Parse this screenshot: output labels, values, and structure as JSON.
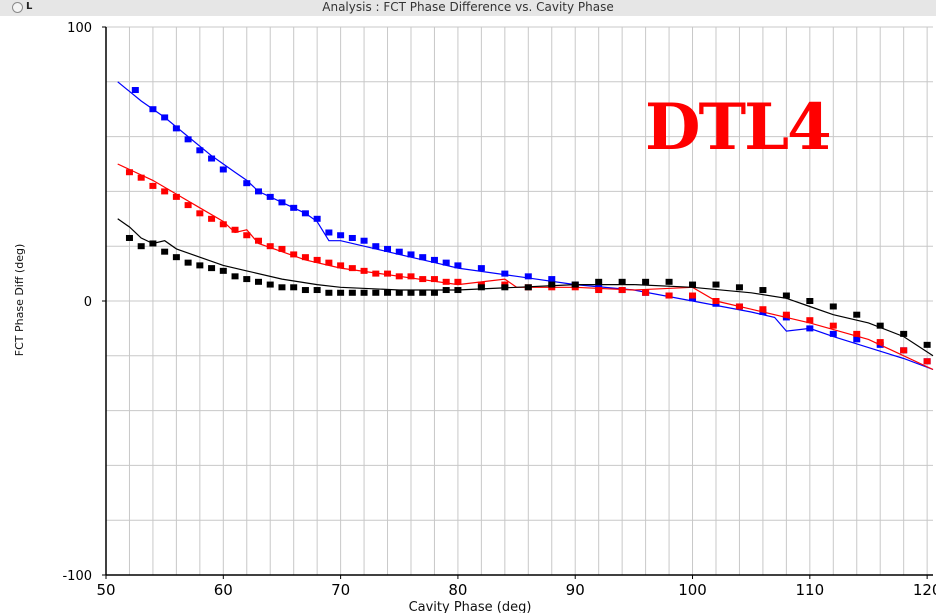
{
  "window": {
    "title": "Analysis : FCT Phase Difference vs. Cavity Phase",
    "corner_label": "L"
  },
  "annotation": {
    "text": "DTL4",
    "color": "#ff0000"
  },
  "chart_data": {
    "type": "scatter",
    "title": "Analysis : FCT Phase Difference vs. Cavity Phase",
    "xlabel": "Cavity Phase (deg)",
    "ylabel": "FCT Phase Diff (deg)",
    "xlim": [
      50,
      120.5
    ],
    "ylim": [
      -100,
      100
    ],
    "xticks": [
      50,
      60,
      70,
      80,
      90,
      100,
      110,
      120
    ],
    "yticks": [
      -100,
      0,
      100
    ],
    "ygrid": [
      -100,
      -80,
      -60,
      -40,
      -20,
      0,
      20,
      40,
      60,
      80,
      100
    ],
    "xgrid_step": 2,
    "grid": true,
    "series": [
      {
        "color": "#0000ff",
        "points": {
          "x": [
            52.5,
            54,
            55,
            56,
            57,
            58,
            59,
            60,
            62,
            63,
            64,
            65,
            66,
            67,
            68,
            69,
            70,
            71,
            72,
            73,
            74,
            75,
            76,
            77,
            78,
            79,
            80,
            82,
            84,
            86,
            88,
            90,
            92,
            94,
            96,
            98,
            100,
            102,
            104,
            106,
            108,
            110,
            112,
            114,
            116,
            118,
            120
          ],
          "y": [
            77,
            70,
            67,
            63,
            59,
            55,
            52,
            48,
            43,
            40,
            38,
            36,
            34,
            32,
            30,
            25,
            24,
            23,
            22,
            20,
            19,
            18,
            17,
            16,
            15,
            14,
            13,
            12,
            10,
            9,
            8,
            6,
            5,
            4,
            3,
            2,
            1,
            -1,
            -2,
            -4,
            -6,
            -10,
            -12,
            -14,
            -16,
            -18,
            -22
          ]
        },
        "line": {
          "x": [
            51,
            53,
            55,
            57,
            59,
            61,
            62,
            63,
            65,
            67,
            68,
            69,
            70,
            72,
            74,
            76,
            78,
            80,
            85,
            90,
            95,
            100,
            105,
            107,
            108,
            110,
            112,
            115,
            118,
            120.5
          ],
          "y": [
            80,
            73,
            67,
            60,
            53,
            47,
            44,
            40,
            36,
            32,
            29,
            22,
            22,
            20,
            18,
            16,
            14,
            12,
            9,
            6,
            4,
            0,
            -4,
            -6,
            -11,
            -10,
            -13,
            -17,
            -21,
            -25
          ]
        }
      },
      {
        "color": "#ff0000",
        "points": {
          "x": [
            52,
            53,
            54,
            55,
            56,
            57,
            58,
            59,
            60,
            61,
            62,
            63,
            64,
            65,
            66,
            67,
            68,
            69,
            70,
            71,
            72,
            73,
            74,
            75,
            76,
            77,
            78,
            79,
            80,
            82,
            84,
            86,
            88,
            90,
            92,
            94,
            96,
            98,
            100,
            102,
            104,
            106,
            108,
            110,
            112,
            114,
            116,
            118,
            120
          ],
          "y": [
            47,
            45,
            42,
            40,
            38,
            35,
            32,
            30,
            28,
            26,
            24,
            22,
            20,
            19,
            17,
            16,
            15,
            14,
            13,
            12,
            11,
            10,
            10,
            9,
            9,
            8,
            8,
            7,
            7,
            6,
            6,
            5,
            5,
            5,
            4,
            4,
            3,
            2,
            2,
            0,
            -2,
            -3,
            -5,
            -7,
            -9,
            -12,
            -15,
            -18,
            -22
          ]
        },
        "line": {
          "x": [
            51,
            52,
            54,
            56,
            58,
            60,
            61,
            62,
            63,
            65,
            67,
            70,
            75,
            80,
            84,
            85,
            90,
            95,
            100,
            102,
            105,
            110,
            115,
            120.5
          ],
          "y": [
            50,
            48,
            44,
            39,
            34,
            29,
            25,
            26,
            21,
            18,
            15,
            12,
            9,
            6,
            8,
            5,
            5,
            4,
            5,
            0,
            -3,
            -8,
            -14,
            -25
          ]
        }
      },
      {
        "color": "#000000",
        "points": {
          "x": [
            52,
            53,
            54,
            55,
            56,
            57,
            58,
            59,
            60,
            61,
            62,
            63,
            64,
            65,
            66,
            67,
            68,
            69,
            70,
            71,
            72,
            73,
            74,
            75,
            76,
            77,
            78,
            79,
            80,
            82,
            84,
            86,
            88,
            90,
            92,
            94,
            96,
            98,
            100,
            102,
            104,
            106,
            108,
            110,
            112,
            114,
            116,
            118,
            120
          ],
          "y": [
            23,
            20,
            21,
            18,
            16,
            14,
            13,
            12,
            11,
            9,
            8,
            7,
            6,
            5,
            5,
            4,
            4,
            3,
            3,
            3,
            3,
            3,
            3,
            3,
            3,
            3,
            3,
            4,
            4,
            5,
            5,
            5,
            6,
            6,
            7,
            7,
            7,
            7,
            6,
            6,
            5,
            4,
            2,
            0,
            -2,
            -5,
            -9,
            -12,
            -16
          ]
        },
        "line": {
          "x": [
            51,
            52,
            53,
            54,
            55,
            56,
            58,
            60,
            62,
            65,
            68,
            70,
            75,
            80,
            85,
            90,
            95,
            100,
            105,
            108,
            110,
            112,
            115,
            118,
            120.5
          ],
          "y": [
            30,
            27,
            23,
            21,
            22,
            19,
            16,
            13,
            11,
            8,
            6,
            5,
            4,
            4,
            5,
            6,
            6,
            5,
            3,
            1,
            -2,
            -5,
            -8,
            -13,
            -20
          ]
        }
      }
    ]
  }
}
